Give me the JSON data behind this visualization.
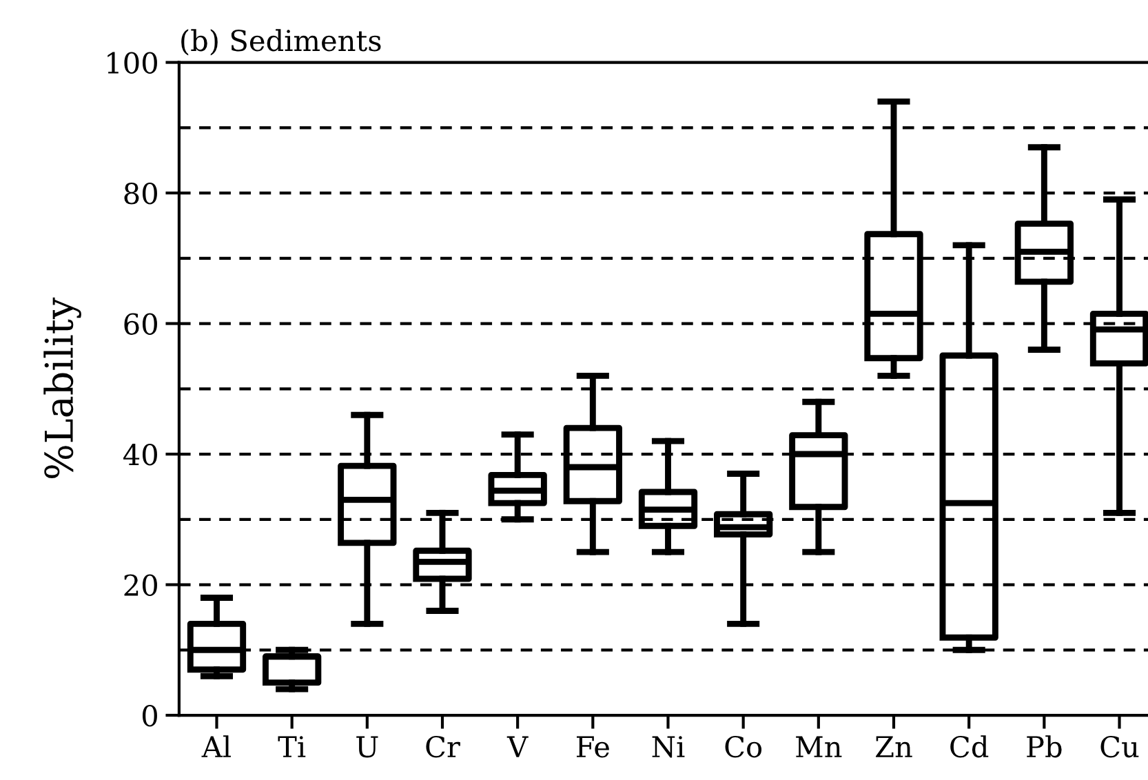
{
  "chart_data": {
    "type": "box",
    "title": "(b) Sediments",
    "ylabel": "%Lability",
    "categories": [
      "Al",
      "Ti",
      "U",
      "Cr",
      "V",
      "Fe",
      "Ni",
      "Co",
      "Mn",
      "Zn",
      "Cd",
      "Pb",
      "Cu"
    ],
    "boxes": [
      {
        "low": 6,
        "q1": 7,
        "median": 10,
        "q3": 14,
        "high": 18
      },
      {
        "low": 4,
        "q1": 5,
        "median": 9,
        "q3": 9,
        "high": 10
      },
      {
        "low": 14,
        "q1": 26.4,
        "median": 33,
        "q3": 38.2,
        "high": 46
      },
      {
        "low": 16,
        "q1": 20.9,
        "median": 23.5,
        "q3": 25.2,
        "high": 31
      },
      {
        "low": 30,
        "q1": 32.5,
        "median": 34.4,
        "q3": 36.8,
        "high": 43
      },
      {
        "low": 25,
        "q1": 32.8,
        "median": 38,
        "q3": 44,
        "high": 52
      },
      {
        "low": 25,
        "q1": 29,
        "median": 31.5,
        "q3": 34.2,
        "high": 42
      },
      {
        "low": 14,
        "q1": 27.7,
        "median": 28.8,
        "q3": 30.8,
        "high": 37
      },
      {
        "low": 25,
        "q1": 31.9,
        "median": 40,
        "q3": 42.9,
        "high": 48
      },
      {
        "low": 52,
        "q1": 54.7,
        "median": 61.5,
        "q3": 73.7,
        "high": 94
      },
      {
        "low": 10,
        "q1": 11.9,
        "median": 32.5,
        "q3": 55.1,
        "high": 72
      },
      {
        "low": 56,
        "q1": 66.4,
        "median": 71,
        "q3": 75.3,
        "high": 87
      },
      {
        "low": 31,
        "q1": 53.9,
        "median": 59.1,
        "q3": 61.5,
        "high": 79
      }
    ],
    "color": "#000000",
    "ylim": [
      0,
      100
    ],
    "yticks": [
      0,
      20,
      40,
      60,
      80,
      100
    ],
    "ref_lines": [
      {
        "axis": "y",
        "value": 10,
        "color": "#000000",
        "line_style": "dashed"
      },
      {
        "axis": "y",
        "value": 20,
        "color": "#000000",
        "line_style": "dashed"
      },
      {
        "axis": "y",
        "value": 30,
        "color": "#000000",
        "line_style": "dashed"
      },
      {
        "axis": "y",
        "value": 40,
        "color": "#000000",
        "line_style": "dashed"
      },
      {
        "axis": "y",
        "value": 50,
        "color": "#000000",
        "line_style": "dashed"
      },
      {
        "axis": "y",
        "value": 60,
        "color": "#000000",
        "line_style": "dashed"
      },
      {
        "axis": "y",
        "value": 70,
        "color": "#000000",
        "line_style": "dashed"
      },
      {
        "axis": "y",
        "value": 80,
        "color": "#000000",
        "line_style": "dashed"
      },
      {
        "axis": "y",
        "value": 90,
        "color": "#000000",
        "line_style": "dashed"
      }
    ]
  }
}
